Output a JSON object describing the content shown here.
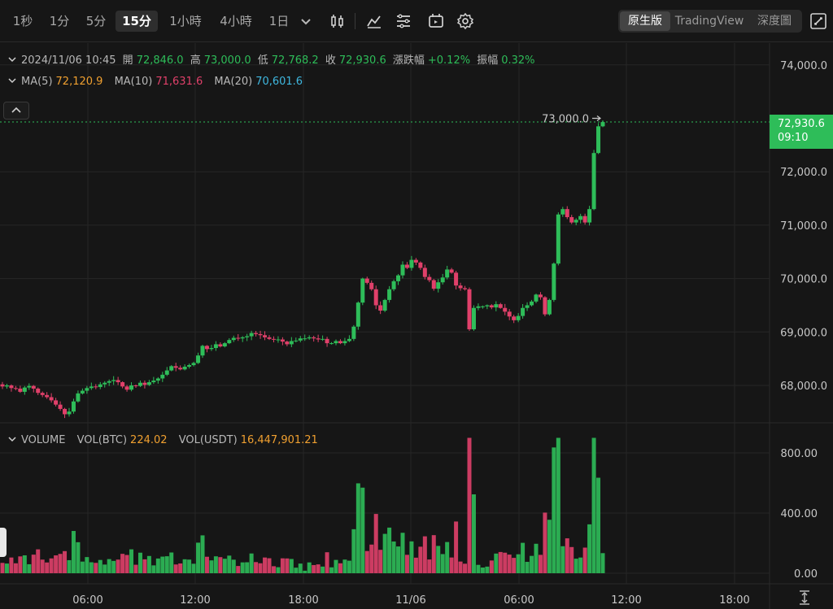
{
  "toolbar": {
    "intervals": [
      "1秒",
      "1分",
      "5分",
      "15分",
      "1小時",
      "4小時",
      "1日"
    ],
    "active_interval": "15分",
    "view_modes": [
      "原生版",
      "TradingView",
      "深度圖"
    ],
    "active_view": "原生版",
    "icons": [
      "chevron-down-icon",
      "candlestick-icon",
      "indicator-icon",
      "settings-list-icon",
      "replay-icon",
      "gear-icon",
      "fullscreen-icon"
    ]
  },
  "legend": {
    "datetime": "2024/11/06 10:45",
    "open_label": "開",
    "open": "72,846.0",
    "high_label": "高",
    "high": "73,000.0",
    "low_label": "低",
    "low": "72,768.2",
    "close_label": "收",
    "close": "72,930.6",
    "change_label": "漲跌幅",
    "change": "+0.12%",
    "amplitude_label": "振幅",
    "amplitude": "0.32%",
    "ma5_label": "MA(5)",
    "ma5": "72,120.9",
    "ma10_label": "MA(10)",
    "ma10": "71,631.6",
    "ma20_label": "MA(20)",
    "ma20": "70,601.6"
  },
  "volume_legend": {
    "title": "VOLUME",
    "btc_label": "VOL(BTC)",
    "btc": "224.02",
    "usdt_label": "VOL(USDT)",
    "usdt": "16,447,901.21"
  },
  "price_tag": {
    "price": "72,930.6",
    "countdown": "09:10"
  },
  "high_marker": "73,000.0",
  "colors": {
    "up": "#2ebd59",
    "down": "#e0406a",
    "background": "#161616",
    "grid": "#262626"
  },
  "chart_data": {
    "type": "candlestick",
    "interval": "15m",
    "price_axis": {
      "ticks": [
        68000,
        69000,
        70000,
        71000,
        72000,
        73000,
        74000
      ],
      "tick_labels": [
        "68,000.0",
        "69,000.0",
        "70,000.0",
        "71,000.0",
        "72,000.0",
        "73,000.0",
        "74,000.0"
      ]
    },
    "volume_axis": {
      "ticks": [
        0,
        400,
        800
      ],
      "tick_labels": [
        "0.00",
        "400.00",
        "800.00"
      ]
    },
    "time_axis": {
      "tick_labels": [
        "06:00",
        "12:00",
        "18:00",
        "11/06",
        "06:00",
        "12:00",
        "18:00"
      ]
    },
    "last_price": 72930.6,
    "close": [
      67980,
      68000,
      67950,
      67940,
      67880,
      67960,
      67990,
      67940,
      67860,
      67820,
      67780,
      67720,
      67640,
      67560,
      67460,
      67510,
      67700,
      67850,
      67900,
      67950,
      67980,
      67970,
      68020,
      68050,
      68080,
      68100,
      68060,
      67980,
      67920,
      68000,
      67990,
      68050,
      68010,
      68060,
      68090,
      68130,
      68200,
      68280,
      68360,
      68330,
      68300,
      68350,
      68380,
      68420,
      68560,
      68740,
      68680,
      68700,
      68770,
      68730,
      68790,
      68850,
      68890,
      68880,
      68900,
      68920,
      68980,
      68960,
      68940,
      68900,
      68870,
      68860,
      68860,
      68820,
      68770,
      68830,
      68840,
      68880,
      68880,
      68900,
      68880,
      68860,
      68870,
      68790,
      68790,
      68830,
      68790,
      68830,
      68870,
      69100,
      69550,
      70000,
      69920,
      69800,
      69500,
      69400,
      69600,
      69800,
      69950,
      70060,
      70260,
      70200,
      70350,
      70300,
      70200,
      70030,
      69970,
      69810,
      69930,
      70020,
      70170,
      70110,
      69870,
      69820,
      69800,
      69050,
      69450,
      69480,
      69480,
      69500,
      69460,
      69520,
      69450,
      69380,
      69290,
      69220,
      69300,
      69450,
      69500,
      69570,
      69700,
      69650,
      69330,
      69600,
      70280,
      71200,
      71300,
      71150,
      71050,
      71100,
      71170,
      71050,
      71300,
      72350,
      72850,
      72930
    ]
  }
}
